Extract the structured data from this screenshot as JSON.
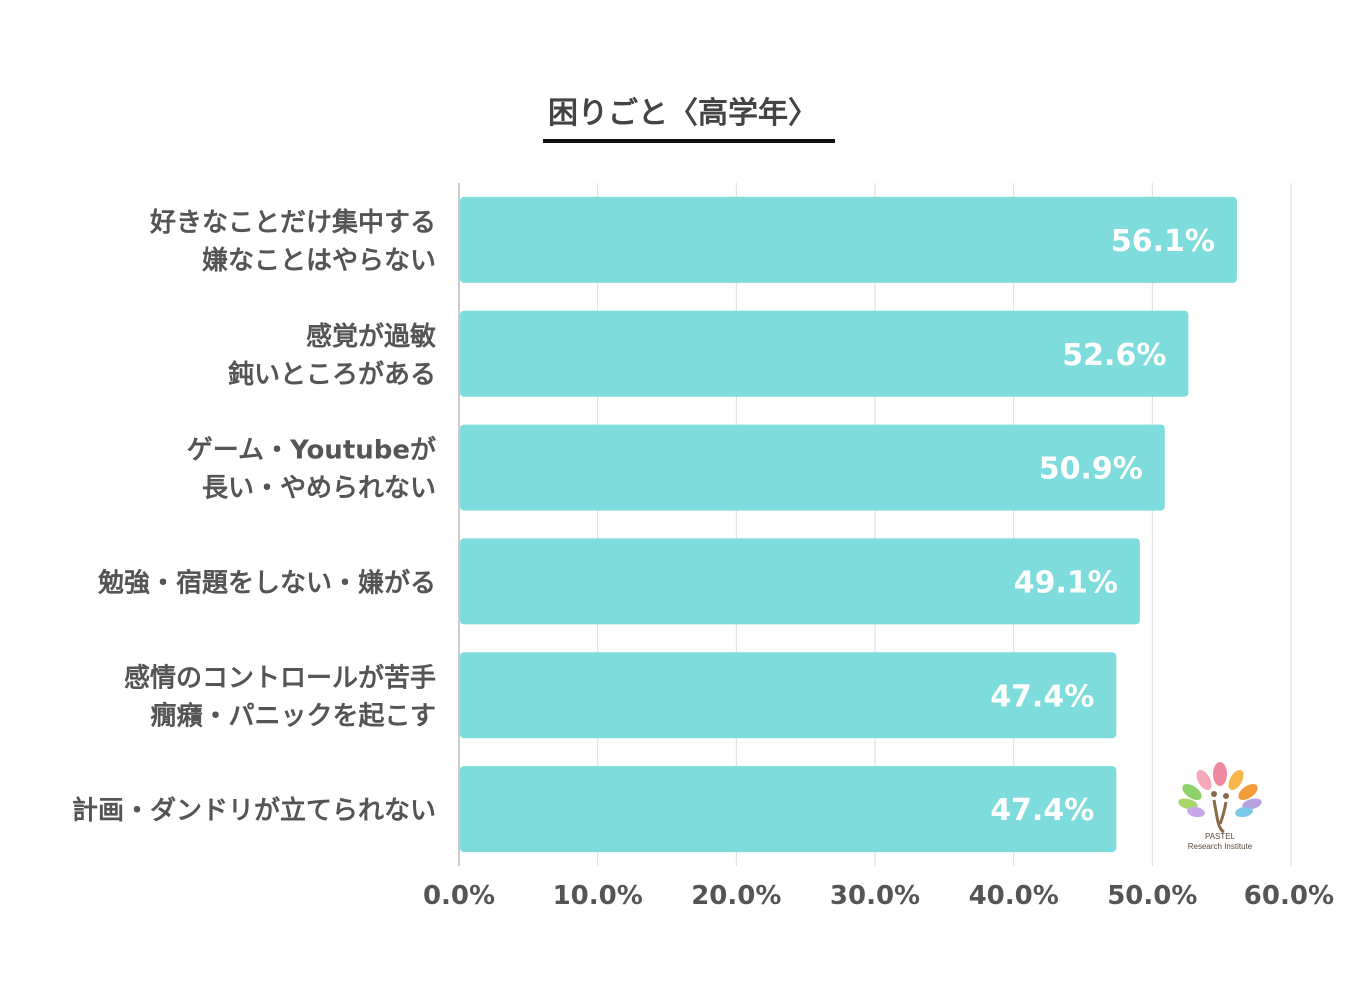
{
  "title": "困りごと〈高学年〉",
  "logo": {
    "line1": "PASTEL",
    "line2": "Research Institute"
  },
  "colors": {
    "bar": "#7fdcdc",
    "value_label": "#ffffff",
    "text": "#555555",
    "grid": "#dddddd",
    "axis": "#bbbbbb"
  },
  "chart_data": {
    "type": "bar",
    "orientation": "horizontal",
    "title": "困りごと〈高学年〉",
    "categories": [
      [
        "好きなことだけ集中する",
        "嫌なことはやらない"
      ],
      [
        "感覚が過敏",
        "鈍いところがある"
      ],
      [
        "ゲーム・Youtubeが",
        "長い・やめられない"
      ],
      [
        "勉強・宿題をしない・嫌がる"
      ],
      [
        "感情のコントロールが苦手",
        "癇癪・パニックを起こす"
      ],
      [
        "計画・ダンドリが立てられない"
      ]
    ],
    "values": [
      56.1,
      52.6,
      50.9,
      49.1,
      47.4,
      47.4
    ],
    "value_labels": [
      "56.1%",
      "52.6%",
      "50.9%",
      "49.1%",
      "47.4%",
      "47.4%"
    ],
    "xlim": [
      0,
      60
    ],
    "xticks": [
      0,
      10,
      20,
      30,
      40,
      50,
      60
    ],
    "xtick_labels": [
      "0.0%",
      "10.0%",
      "20.0%",
      "30.0%",
      "40.0%",
      "50.0%",
      "60.0%"
    ],
    "grid": true,
    "legend": "none",
    "xlabel": "",
    "ylabel": ""
  }
}
